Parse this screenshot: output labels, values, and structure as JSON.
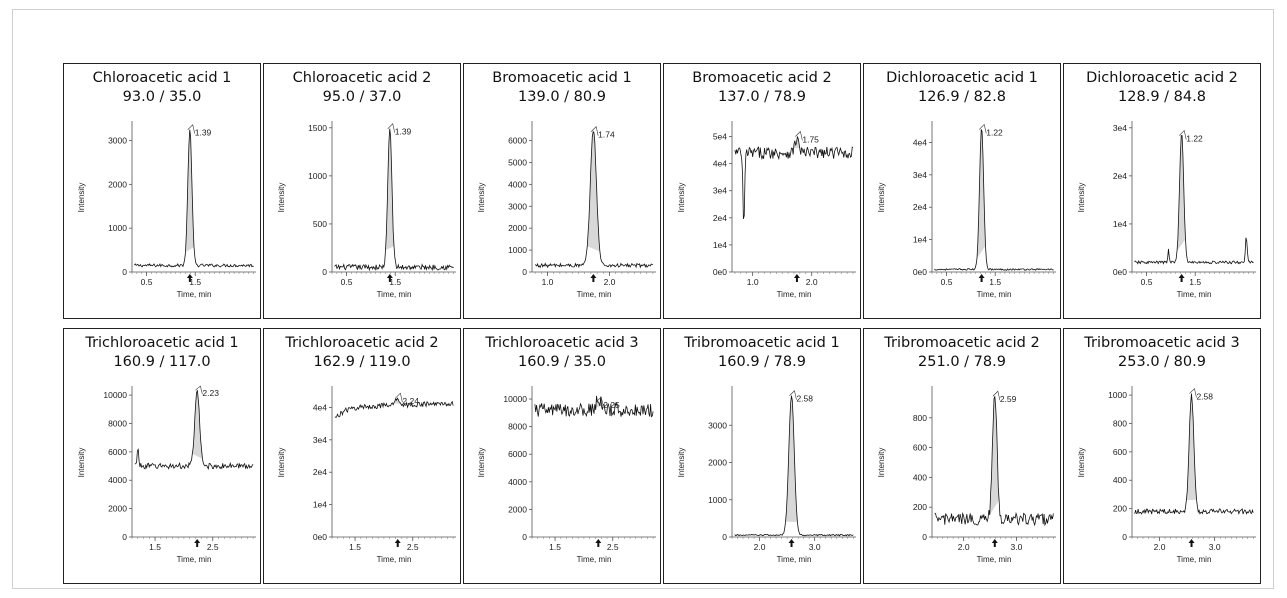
{
  "xaxis_label": "Time, min",
  "yaxis_label": "Intensity",
  "chart_data": [
    {
      "type": "line",
      "title": "Chloroacetic acid 1",
      "subtitle": "93.0 / 35.0",
      "xlim": [
        0.2,
        2.75
      ],
      "ylim": [
        0,
        3400
      ],
      "xticks": [
        "0.5",
        "1.5"
      ],
      "yticks": [
        "0",
        "1000",
        "2000",
        "3000"
      ],
      "peak": {
        "rt": "1.39",
        "x": 1.39,
        "height": 3100,
        "width": 0.06
      },
      "arrow_x": 1.39,
      "baseline": {
        "level": 150,
        "noise": 35
      }
    },
    {
      "type": "line",
      "title": "Chloroacetic acid 2",
      "subtitle": "95.0 / 37.0",
      "xlim": [
        0.2,
        2.75
      ],
      "ylim": [
        0,
        1550
      ],
      "xticks": [
        "0.5",
        "1.5"
      ],
      "yticks": [
        "0",
        "500",
        "1000",
        "1500"
      ],
      "peak": {
        "rt": "1.39",
        "x": 1.39,
        "height": 1450,
        "width": 0.06
      },
      "arrow_x": 1.39,
      "baseline": {
        "level": 50,
        "noise": 28
      }
    },
    {
      "type": "line",
      "title": "Bromoacetic acid 1",
      "subtitle": "139.0 / 80.9",
      "xlim": [
        0.75,
        2.75
      ],
      "ylim": [
        0,
        6800
      ],
      "xticks": [
        "1.0",
        "2.0"
      ],
      "yticks": [
        "0",
        "1000",
        "2000",
        "3000",
        "4000",
        "5000",
        "6000"
      ],
      "peak": {
        "rt": "1.74",
        "x": 1.74,
        "height": 6200,
        "width": 0.07
      },
      "arrow_x": 1.74,
      "baseline": {
        "level": 300,
        "noise": 90
      }
    },
    {
      "type": "line",
      "title": "Bromoacetic acid 2",
      "subtitle": "137.0 / 78.9",
      "xlim": [
        0.65,
        2.75
      ],
      "ylim": [
        0,
        55000
      ],
      "xticks": [
        "1.0",
        "2.0"
      ],
      "yticks": [
        "0e0",
        "1e4",
        "2e4",
        "3e4",
        "4e4",
        "5e4"
      ],
      "peak": {
        "rt": "1.75",
        "x": 1.75,
        "height": 5000,
        "width": 0.05
      },
      "arrow_x": 1.75,
      "baseline": {
        "level": 44000,
        "noise": 2200
      }
    },
    {
      "type": "line",
      "title": "Dichloroacetic acid 1",
      "subtitle": "126.9 / 82.8",
      "xlim": [
        0.2,
        2.75
      ],
      "ylim": [
        0,
        46000
      ],
      "xticks": [
        "0.5",
        "1.5"
      ],
      "yticks": [
        "0e0",
        "1e4",
        "2e4",
        "3e4",
        "4e4"
      ],
      "peak": {
        "rt": "1.22",
        "x": 1.22,
        "height": 44000,
        "width": 0.06
      },
      "arrow_x": 1.22,
      "baseline": {
        "level": 800,
        "noise": 250
      }
    },
    {
      "type": "line",
      "title": "Dichloroacetic acid 2",
      "subtitle": "128.9 / 84.8",
      "xlim": [
        0.2,
        2.75
      ],
      "ylim": [
        0,
        31000
      ],
      "xticks": [
        "0.5",
        "1.5"
      ],
      "yticks": [
        "0e0",
        "1e4",
        "2e4",
        "3e4"
      ],
      "peak": {
        "rt": "1.22",
        "x": 1.22,
        "height": 27000,
        "width": 0.06
      },
      "arrow_x": 1.22,
      "baseline": {
        "level": 2000,
        "noise": 300
      }
    },
    {
      "type": "line",
      "title": "Trichloroacetic acid 1",
      "subtitle": "160.9 / 117.0",
      "xlim": [
        1.1,
        3.25
      ],
      "ylim": [
        0,
        10500
      ],
      "xticks": [
        "1.5",
        "2.5"
      ],
      "yticks": [
        "0",
        "2000",
        "4000",
        "6000",
        "8000",
        "10000"
      ],
      "peak": {
        "rt": "2.23",
        "x": 2.23,
        "height": 5200,
        "width": 0.06
      },
      "arrow_x": 2.23,
      "baseline": {
        "level": 5000,
        "noise": 200
      }
    },
    {
      "type": "line",
      "title": "Trichloroacetic acid 2",
      "subtitle": "162.9 / 119.0",
      "xlim": [
        1.1,
        3.25
      ],
      "ylim": [
        0,
        46000
      ],
      "xticks": [
        "1.5",
        "2.5"
      ],
      "yticks": [
        "0e0",
        "1e4",
        "2e4",
        "3e4",
        "4e4"
      ],
      "peak": {
        "rt": "2.24",
        "x": 2.24,
        "height": 2000,
        "width": 0.06
      },
      "arrow_x": 2.24,
      "baseline": {
        "level": 40000,
        "noise": 800
      }
    },
    {
      "type": "line",
      "title": "Trichloroacetic acid 3",
      "subtitle": "160.9 / 35.0",
      "xlim": [
        1.1,
        3.25
      ],
      "ylim": [
        0,
        10800
      ],
      "xticks": [
        "1.5",
        "2.5"
      ],
      "yticks": [
        "0",
        "2000",
        "4000",
        "6000",
        "8000",
        "10000"
      ],
      "peak": {
        "rt": "2.25",
        "x": 2.25,
        "height": 800,
        "width": 0.06
      },
      "arrow_x": 2.25,
      "baseline": {
        "level": 9200,
        "noise": 500
      }
    },
    {
      "type": "line",
      "title": "Tribromoacetic acid 1",
      "subtitle": "160.9 / 78.9",
      "xlim": [
        1.5,
        3.75
      ],
      "ylim": [
        0,
        4000
      ],
      "xticks": [
        "2.0",
        "3.0"
      ],
      "yticks": [
        "0",
        "1000",
        "2000",
        "3000"
      ],
      "peak": {
        "rt": "2.58",
        "x": 2.58,
        "height": 3750,
        "width": 0.07
      },
      "arrow_x": 2.58,
      "baseline": {
        "level": 50,
        "noise": 20
      }
    },
    {
      "type": "line",
      "title": "Tribromoacetic acid 2",
      "subtitle": "251.0 / 78.9",
      "xlim": [
        1.4,
        3.75
      ],
      "ylim": [
        0,
        1000
      ],
      "xticks": [
        "2.0",
        "3.0"
      ],
      "yticks": [
        "0",
        "200",
        "400",
        "600",
        "800"
      ],
      "peak": {
        "rt": "2.59",
        "x": 2.59,
        "height": 820,
        "width": 0.06
      },
      "arrow_x": 2.59,
      "baseline": {
        "level": 120,
        "noise": 40
      }
    },
    {
      "type": "line",
      "title": "Tribromoacetic acid 3",
      "subtitle": "253.0 / 80.9",
      "xlim": [
        1.5,
        3.75
      ],
      "ylim": [
        0,
        1050
      ],
      "xticks": [
        "2.0",
        "3.0"
      ],
      "yticks": [
        "0",
        "200",
        "400",
        "600",
        "800",
        "1000"
      ],
      "peak": {
        "rt": "2.58",
        "x": 2.58,
        "height": 820,
        "width": 0.06
      },
      "arrow_x": 2.58,
      "baseline": {
        "level": 180,
        "noise": 18
      }
    }
  ]
}
